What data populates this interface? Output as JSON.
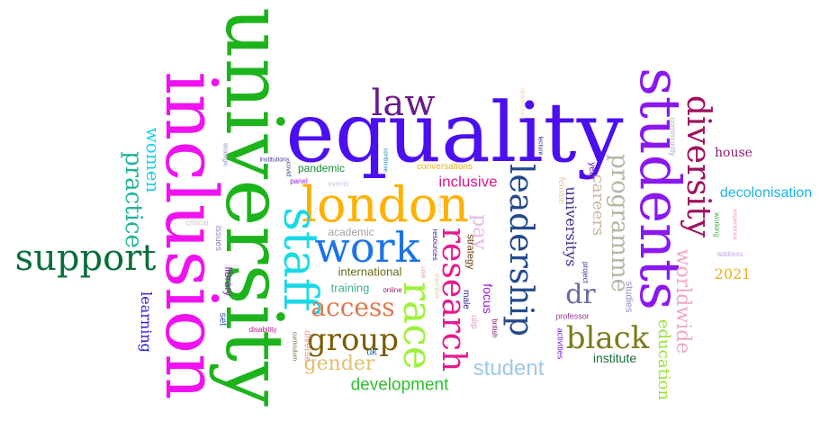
{
  "cloud": {
    "background": "#ffffff",
    "words": [
      {
        "text": "equality",
        "color": "#4b0ff0"
      },
      {
        "text": "university",
        "color": "#1db31d"
      },
      {
        "text": "inclusion",
        "color": "#f012f0"
      },
      {
        "text": "students",
        "color": "#8a18f0"
      },
      {
        "text": "london",
        "color": "#ffb000"
      },
      {
        "text": "staff",
        "color": "#19d9e6"
      },
      {
        "text": "work",
        "color": "#1b73e8"
      },
      {
        "text": "race",
        "color": "#9cf23a"
      },
      {
        "text": "leadership",
        "color": "#244a8c"
      },
      {
        "text": "research",
        "color": "#e8198f"
      },
      {
        "text": "diversity",
        "color": "#a01060"
      },
      {
        "text": "support",
        "color": "#0a6e3c"
      },
      {
        "text": "law",
        "color": "#6a1a8c"
      },
      {
        "text": "group",
        "color": "#7a5c00"
      },
      {
        "text": "black",
        "color": "#7a7a1a"
      },
      {
        "text": "programme",
        "color": "#b0b8a0"
      },
      {
        "text": "practice",
        "color": "#1fb39a"
      },
      {
        "text": "women",
        "color": "#1ad0e8"
      },
      {
        "text": "access",
        "color": "#e07850"
      },
      {
        "text": "gender",
        "color": "#e0c070"
      },
      {
        "text": "student",
        "color": "#9ec8e8"
      },
      {
        "text": "development",
        "color": "#2ebe2e"
      },
      {
        "text": "dr",
        "color": "#6a6aa0"
      },
      {
        "text": "pay",
        "color": "#e8b8e8"
      },
      {
        "text": "careers",
        "color": "#c8b4a0"
      },
      {
        "text": "worldwide",
        "color": "#f0a8c0"
      },
      {
        "text": "education",
        "color": "#9ae03a"
      },
      {
        "text": "decolonisation",
        "color": "#1ab4e8"
      },
      {
        "text": "inclusive",
        "color": "#d81a8c"
      },
      {
        "text": "house",
        "color": "#8a1a6e"
      },
      {
        "text": "institute",
        "color": "#1a6a3a"
      },
      {
        "text": "learning",
        "color": "#2a1ae0"
      },
      {
        "text": "2021",
        "color": "#e8b020"
      },
      {
        "text": "universitys",
        "color": "#3a2a8c"
      },
      {
        "text": "focus",
        "color": "#9a1ae0"
      },
      {
        "text": "international",
        "color": "#6a6a1a"
      },
      {
        "text": "training",
        "color": "#3ab48c"
      },
      {
        "text": "pandemic",
        "color": "#1a8c3a"
      },
      {
        "text": "library",
        "color": "#a01ac8"
      },
      {
        "text": "strategy",
        "color": "#6a3a0a"
      },
      {
        "text": "studies",
        "color": "#8c8cc8"
      },
      {
        "text": "academic",
        "color": "#a0a0a0"
      },
      {
        "text": "diverse",
        "color": "#e8a0a0"
      },
      {
        "text": "set",
        "color": "#2a5ab4"
      },
      {
        "text": "male",
        "color": "#3a1a8c"
      },
      {
        "text": "ulip",
        "color": "#e8a0c8"
      },
      {
        "text": "uk",
        "color": "#1a6ab4"
      },
      {
        "text": "issues",
        "color": "#8c8cc8"
      },
      {
        "text": "critical",
        "color": "#c8c8c8"
      },
      {
        "text": "conversations",
        "color": "#e8b020"
      },
      {
        "text": "year",
        "color": "#6a1ab4"
      },
      {
        "text": "female",
        "color": "#e8d0a0"
      },
      {
        "text": "community",
        "color": "#a0b4c8"
      },
      {
        "text": "professor",
        "color": "#8c3a8c"
      },
      {
        "text": "activities",
        "color": "#6a1ae0"
      },
      {
        "text": "project",
        "color": "#3a3a8c"
      },
      {
        "text": "working",
        "color": "#3ab43a"
      },
      {
        "text": "experience",
        "color": "#e8a0a0"
      },
      {
        "text": "address",
        "color": "#c8a0e8"
      },
      {
        "text": "british",
        "color": "#8c1a6a"
      },
      {
        "text": "resources",
        "color": "#3a1a8c"
      },
      {
        "text": "use",
        "color": "#e8a0a0"
      },
      {
        "text": "member",
        "color": "#e8d0a0"
      },
      {
        "text": "online",
        "color": "#a01a6a"
      },
      {
        "text": "disability",
        "color": "#b01a8c"
      },
      {
        "text": "panel",
        "color": "#a01ae0"
      },
      {
        "text": "covid",
        "color": "#3a3a8c"
      },
      {
        "text": "events",
        "color": "#c8c8e8"
      },
      {
        "text": "continue",
        "color": "#1a8cb4"
      },
      {
        "text": "institutions",
        "color": "#3a3a8c"
      },
      {
        "text": "strategic",
        "color": "#8c8cc8"
      },
      {
        "text": "curriculum",
        "color": "#6a6a3a"
      },
      {
        "text": "lecture",
        "color": "#2a2a8c"
      },
      {
        "text": "objectives",
        "color": "#e8d0b0"
      },
      {
        "text": "global",
        "color": "#e8e0c8"
      }
    ]
  }
}
